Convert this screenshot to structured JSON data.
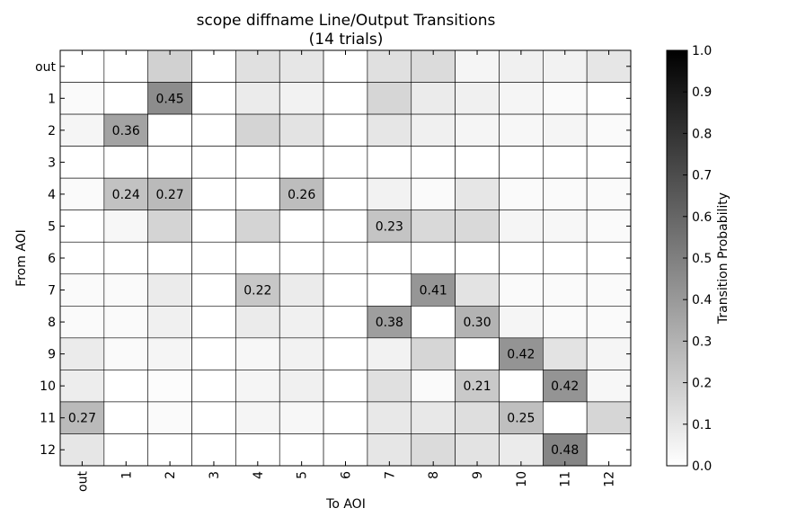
{
  "chart_data": {
    "type": "heatmap",
    "title": "scope diffname Line/Output Transitions",
    "subtitle": "(14 trials)",
    "xlabel": "To AOI",
    "ylabel": "From AOI",
    "colorbar_label": "Transition Probability",
    "x_labels": [
      "out",
      "1",
      "2",
      "3",
      "4",
      "5",
      "6",
      "7",
      "8",
      "9",
      "10",
      "11",
      "12"
    ],
    "y_labels": [
      "out",
      "1",
      "2",
      "3",
      "4",
      "5",
      "6",
      "7",
      "8",
      "9",
      "10",
      "11",
      "12"
    ],
    "value_range": [
      0.0,
      1.0
    ],
    "colorbar_ticks": [
      "0.0",
      "0.1",
      "0.2",
      "0.3",
      "0.4",
      "0.5",
      "0.6",
      "0.7",
      "0.8",
      "0.9",
      "1.0"
    ],
    "colormap": "Greys",
    "annotated_cells": [
      {
        "from": "1",
        "to": "2",
        "label": "0.45"
      },
      {
        "from": "2",
        "to": "1",
        "label": "0.36"
      },
      {
        "from": "4",
        "to": "1",
        "label": "0.24"
      },
      {
        "from": "4",
        "to": "2",
        "label": "0.27"
      },
      {
        "from": "4",
        "to": "5",
        "label": "0.26"
      },
      {
        "from": "5",
        "to": "7",
        "label": "0.23"
      },
      {
        "from": "7",
        "to": "4",
        "label": "0.22"
      },
      {
        "from": "7",
        "to": "8",
        "label": "0.41"
      },
      {
        "from": "8",
        "to": "7",
        "label": "0.38"
      },
      {
        "from": "8",
        "to": "9",
        "label": "0.30"
      },
      {
        "from": "9",
        "to": "10",
        "label": "0.42"
      },
      {
        "from": "10",
        "to": "9",
        "label": "0.21"
      },
      {
        "from": "10",
        "to": "11",
        "label": "0.42"
      },
      {
        "from": "11",
        "to": "out",
        "label": "0.27"
      },
      {
        "from": "11",
        "to": "10",
        "label": "0.25"
      },
      {
        "from": "12",
        "to": "11",
        "label": "0.48"
      }
    ],
    "values": [
      [
        0.0,
        0.0,
        0.18,
        0.0,
        0.12,
        0.1,
        0.0,
        0.12,
        0.14,
        0.04,
        0.06,
        0.05,
        0.1
      ],
      [
        0.02,
        0.0,
        0.45,
        0.0,
        0.08,
        0.05,
        0.0,
        0.16,
        0.08,
        0.06,
        0.04,
        0.02,
        0.0
      ],
      [
        0.04,
        0.36,
        0.0,
        0.0,
        0.17,
        0.11,
        0.0,
        0.1,
        0.06,
        0.04,
        0.03,
        0.04,
        0.02
      ],
      [
        0.0,
        0.0,
        0.0,
        0.0,
        0.0,
        0.0,
        0.0,
        0.0,
        0.0,
        0.0,
        0.0,
        0.0,
        0.0
      ],
      [
        0.02,
        0.24,
        0.27,
        0.0,
        0.0,
        0.26,
        0.0,
        0.05,
        0.02,
        0.1,
        0.02,
        0.02,
        0.02
      ],
      [
        0.0,
        0.03,
        0.17,
        0.0,
        0.17,
        0.0,
        0.0,
        0.23,
        0.15,
        0.15,
        0.04,
        0.03,
        0.02
      ],
      [
        0.0,
        0.0,
        0.0,
        0.0,
        0.0,
        0.0,
        0.0,
        0.0,
        0.0,
        0.0,
        0.0,
        0.0,
        0.0
      ],
      [
        0.02,
        0.02,
        0.08,
        0.0,
        0.22,
        0.08,
        0.0,
        0.0,
        0.41,
        0.11,
        0.02,
        0.02,
        0.02
      ],
      [
        0.02,
        0.02,
        0.06,
        0.0,
        0.08,
        0.06,
        0.0,
        0.38,
        0.0,
        0.3,
        0.04,
        0.02,
        0.02
      ],
      [
        0.08,
        0.02,
        0.04,
        0.0,
        0.03,
        0.05,
        0.0,
        0.05,
        0.16,
        0.0,
        0.42,
        0.11,
        0.04
      ],
      [
        0.07,
        0.0,
        0.01,
        0.0,
        0.04,
        0.06,
        0.0,
        0.12,
        0.02,
        0.21,
        0.0,
        0.42,
        0.03
      ],
      [
        0.27,
        0.0,
        0.02,
        0.0,
        0.04,
        0.03,
        0.0,
        0.09,
        0.09,
        0.13,
        0.25,
        0.0,
        0.16
      ],
      [
        0.1,
        0.0,
        0.0,
        0.0,
        0.0,
        0.0,
        0.0,
        0.1,
        0.14,
        0.11,
        0.08,
        0.48,
        0.0
      ]
    ]
  }
}
